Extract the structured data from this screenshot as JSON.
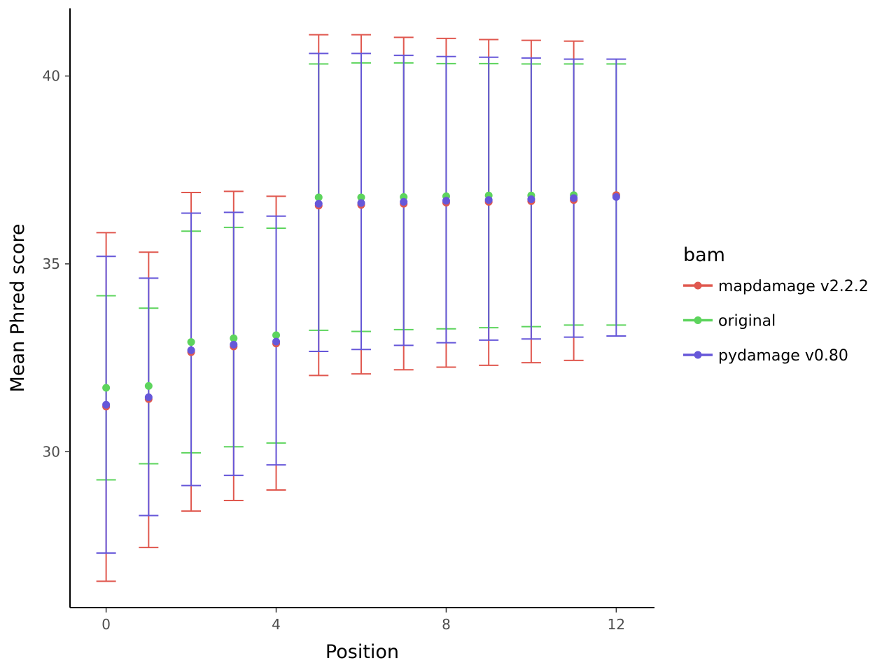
{
  "chart_data": {
    "type": "scatter",
    "xlabel": "Position",
    "ylabel": "Mean Phred score",
    "xlim": [
      -0.85,
      12.9
    ],
    "ylim": [
      25.85,
      41.8
    ],
    "x_ticks": [
      0,
      4,
      8,
      12
    ],
    "y_ticks": [
      30,
      35,
      40
    ],
    "grid": false,
    "legend": {
      "title": "bam",
      "position": "right"
    },
    "x": [
      0,
      1,
      2,
      3,
      4,
      5,
      6,
      7,
      8,
      9,
      10,
      11,
      12
    ],
    "series": [
      {
        "name": "mapdamage v2.2.2",
        "color": "#e0584f",
        "mean": [
          31.2,
          31.4,
          32.65,
          32.8,
          32.88,
          36.55,
          36.57,
          36.6,
          36.63,
          36.65,
          36.67,
          36.7,
          36.83
        ],
        "lower": [
          26.55,
          27.45,
          28.42,
          28.7,
          28.98,
          32.03,
          32.07,
          32.18,
          32.25,
          32.3,
          32.37,
          32.43,
          null
        ],
        "upper": [
          35.83,
          35.31,
          36.9,
          36.93,
          36.8,
          41.1,
          41.1,
          41.03,
          41.0,
          40.97,
          40.95,
          40.93,
          null
        ]
      },
      {
        "name": "original",
        "color": "#5dd45d",
        "mean": [
          31.7,
          31.75,
          32.92,
          33.02,
          33.1,
          36.77,
          36.77,
          36.78,
          36.8,
          36.82,
          36.82,
          36.83,
          36.83
        ],
        "lower": [
          29.25,
          29.68,
          29.97,
          30.13,
          30.23,
          33.23,
          33.2,
          33.25,
          33.27,
          33.3,
          33.33,
          33.37,
          33.37
        ],
        "upper": [
          34.15,
          33.82,
          35.87,
          35.97,
          35.95,
          40.32,
          40.35,
          40.35,
          40.33,
          40.33,
          40.32,
          40.32,
          40.32
        ]
      },
      {
        "name": "pydamage v0.80",
        "color": "#6657d9",
        "mean": [
          31.25,
          31.45,
          32.7,
          32.85,
          32.93,
          36.6,
          36.62,
          36.65,
          36.68,
          36.7,
          36.72,
          36.75,
          36.78
        ],
        "lower": [
          27.3,
          28.3,
          29.1,
          29.37,
          29.65,
          32.67,
          32.72,
          32.83,
          32.9,
          32.97,
          33.0,
          33.05,
          33.08
        ],
        "upper": [
          35.2,
          34.62,
          36.35,
          36.37,
          36.27,
          40.6,
          40.6,
          40.55,
          40.52,
          40.5,
          40.48,
          40.45,
          40.45
        ]
      }
    ]
  }
}
